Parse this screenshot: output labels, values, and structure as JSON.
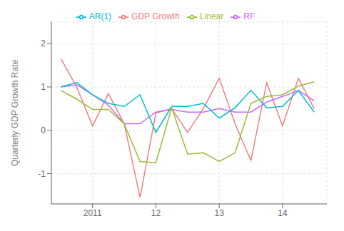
{
  "chart_data": {
    "type": "line",
    "ylabel": "Quarterly GDP Growth Rate",
    "x": [
      2010.5,
      2010.75,
      2011.0,
      2011.25,
      2011.5,
      2011.75,
      2012.0,
      2012.25,
      2012.5,
      2012.75,
      2013.0,
      2013.25,
      2013.5,
      2013.75,
      2014.0,
      2014.25,
      2014.5
    ],
    "series": [
      {
        "name": "GDP Growth",
        "color": "#f08080",
        "values": [
          1.65,
          1.0,
          0.1,
          0.85,
          0.15,
          -1.55,
          0.4,
          0.5,
          -0.05,
          0.5,
          1.2,
          0.15,
          -0.7,
          1.1,
          0.1,
          1.2,
          0.5
        ]
      },
      {
        "name": "RF",
        "color": "#cc66ff",
        "values": [
          1.0,
          1.05,
          0.82,
          0.58,
          0.15,
          0.15,
          0.42,
          0.48,
          0.42,
          0.42,
          0.5,
          0.42,
          0.42,
          0.65,
          0.78,
          0.92,
          0.68
        ]
      },
      {
        "name": "AR(1)",
        "color": "#00bcd4",
        "values": [
          1.0,
          1.1,
          0.82,
          0.62,
          0.55,
          0.82,
          -0.05,
          0.55,
          0.55,
          0.62,
          0.28,
          0.52,
          0.92,
          0.52,
          0.55,
          0.92,
          0.42
        ]
      },
      {
        "name": "Linear",
        "color": "#99bb33",
        "values": [
          0.92,
          0.72,
          0.48,
          0.48,
          0.15,
          -0.72,
          -0.75,
          0.52,
          -0.55,
          -0.52,
          -0.72,
          -0.52,
          0.62,
          0.78,
          0.82,
          1.02,
          1.12
        ]
      }
    ],
    "xlim": [
      2010.35,
      2014.7
    ],
    "xticks": [
      2011,
      {
        "value": 2012,
        "label": "12"
      },
      {
        "value": 2013,
        "label": "13"
      },
      {
        "value": 2014,
        "label": "14"
      }
    ],
    "ylim": [
      -1.7,
      2.5
    ],
    "yticks": [
      -1,
      0,
      1,
      2
    ],
    "grid": true,
    "legend": "top"
  }
}
